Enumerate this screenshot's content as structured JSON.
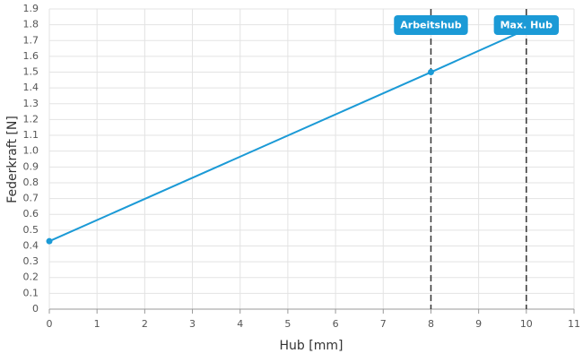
{
  "chart_data": {
    "type": "line",
    "x_label": "Hub [mm]",
    "y_label": "Federkraft [N]",
    "x": [
      0,
      8,
      10
    ],
    "series": [
      {
        "name": "Federkraft",
        "color": "#1b9ad6",
        "values": [
          0.43,
          1.5,
          1.77
        ]
      }
    ],
    "xlim": [
      0,
      11
    ],
    "xticks": [
      0,
      1,
      2,
      3,
      4,
      5,
      6,
      7,
      8,
      9,
      10,
      11
    ],
    "ylim": [
      0,
      1.9
    ],
    "yticks": [
      0,
      0.1,
      0.2,
      0.3,
      0.4,
      0.5,
      0.6,
      0.7,
      0.8,
      0.9,
      {
        "value": 1,
        "label": "1.0"
      },
      1.1,
      1.2,
      1.3,
      1.4,
      1.5,
      1.6,
      1.7,
      1.8,
      1.9
    ],
    "grid": true,
    "annotations": [
      {
        "x": 8,
        "label": "Arbeitshub"
      },
      {
        "x": 10,
        "label": "Max. Hub"
      }
    ]
  }
}
